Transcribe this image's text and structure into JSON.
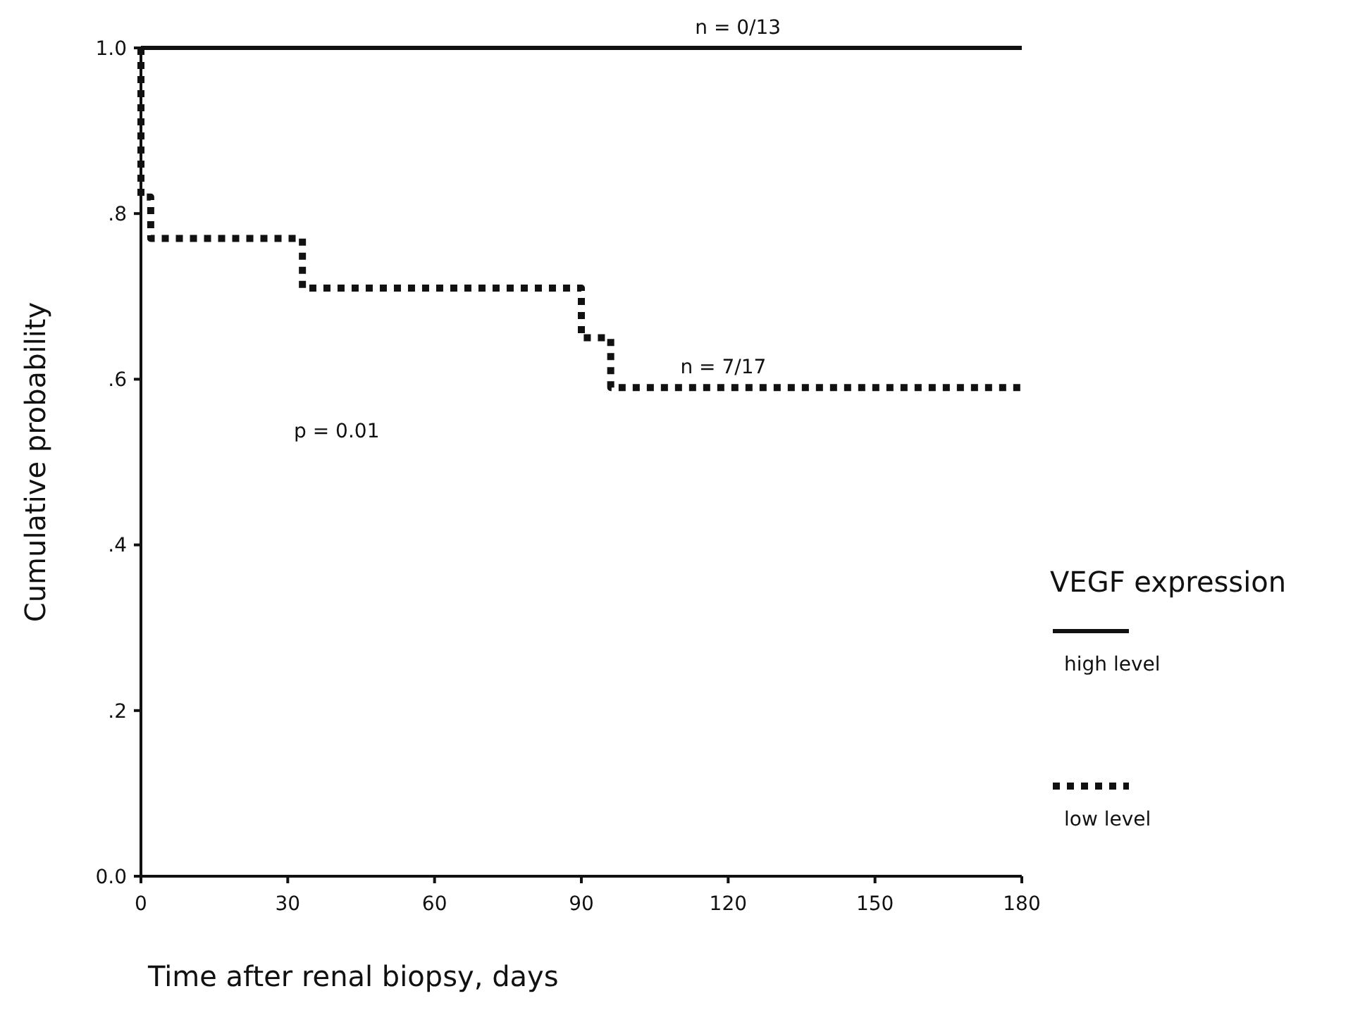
{
  "chart_data": {
    "type": "step",
    "xlabel": "Time after renal biopsy, days",
    "ylabel": "Cumulative probability",
    "legend_title": "VEGF expression",
    "legend": "right",
    "xlim": [
      0,
      180
    ],
    "xticks": [
      0,
      30,
      60,
      90,
      120,
      150,
      180
    ],
    "ylim": [
      0,
      1
    ],
    "yticks": [
      {
        "value": 0,
        "label": "0.0"
      },
      {
        "value": 0.2,
        "label": ".2"
      },
      {
        "value": 0.4,
        "label": ".4"
      },
      {
        "value": 0.6,
        "label": ".6"
      },
      {
        "value": 0.8,
        "label": ".8"
      },
      {
        "value": 1,
        "label": "1.0"
      }
    ],
    "grid": false,
    "series": [
      {
        "name": "high level",
        "color": "#111111",
        "line_style": "solid",
        "x": [
          0,
          180
        ],
        "values": [
          1,
          1
        ]
      },
      {
        "name": "low level",
        "color": "#111111",
        "line_style": "dotted",
        "x": [
          0,
          0,
          2,
          33,
          90,
          96,
          180
        ],
        "values": [
          1,
          0.82,
          0.77,
          0.71,
          0.65,
          0.59,
          0.59
        ]
      }
    ],
    "annotations": [
      {
        "text": "n = 0/13",
        "x": 122,
        "y": 1
      },
      {
        "text": "n = 7/17",
        "x": 119,
        "y": 0.59
      },
      "p = 0.01"
    ]
  }
}
